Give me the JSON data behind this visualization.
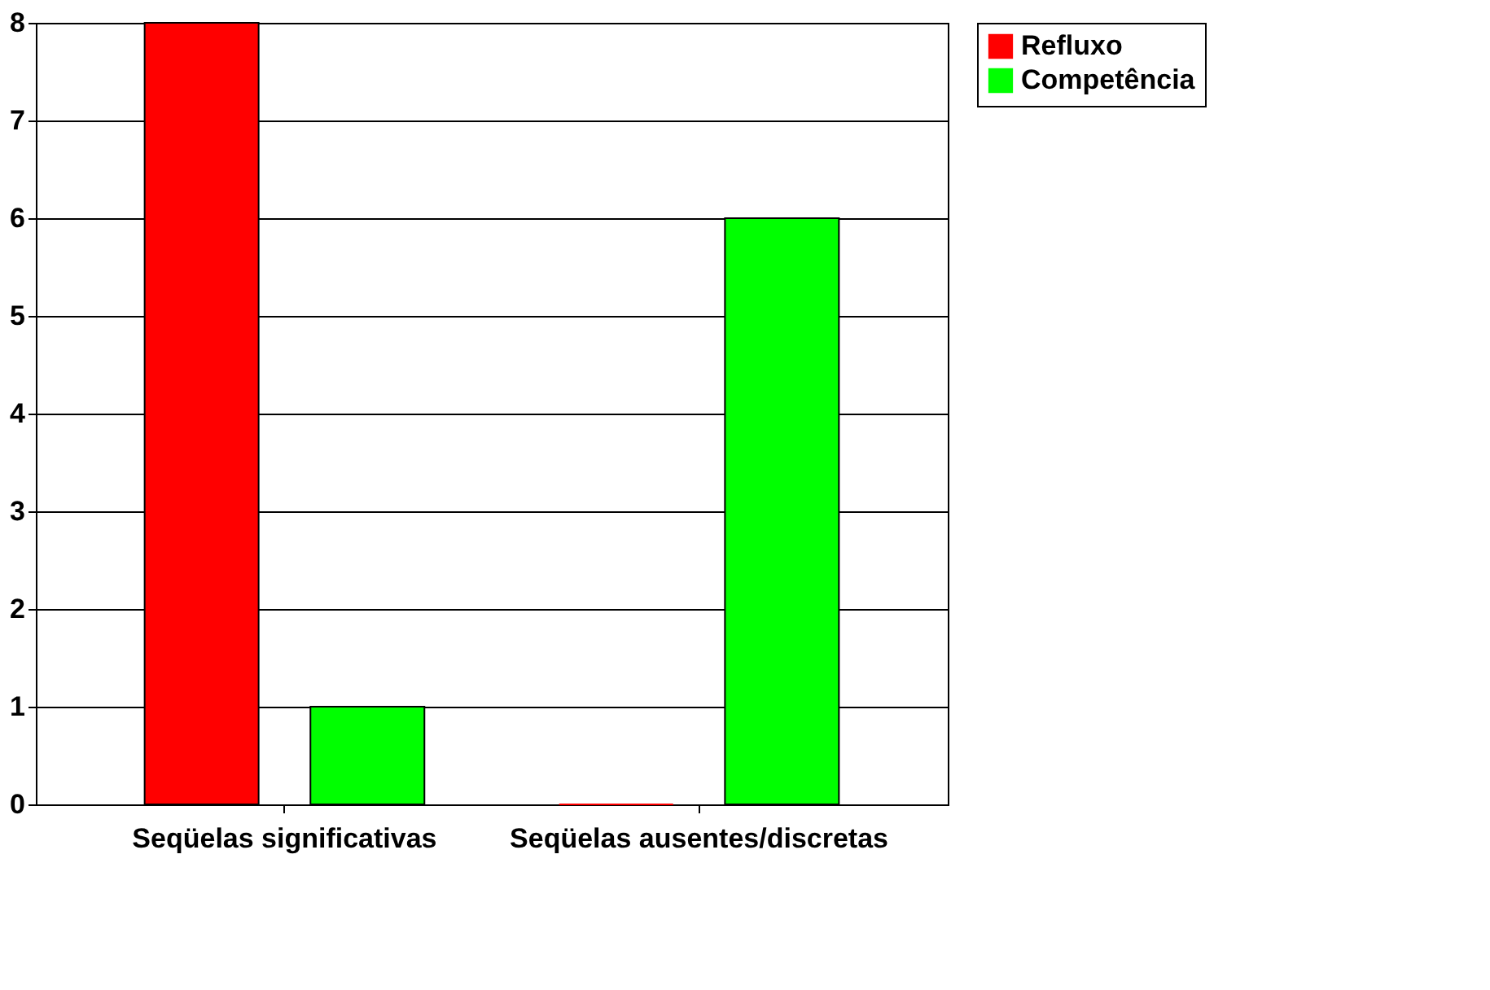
{
  "chart_data": {
    "type": "bar",
    "categories": [
      "Seqüelas significativas",
      "Seqüelas ausentes/discretas"
    ],
    "series": [
      {
        "name": "Refluxo",
        "color": "#ff0000",
        "values": [
          8,
          0
        ]
      },
      {
        "name": "Competência",
        "color": "#00ff00",
        "values": [
          1,
          6
        ]
      }
    ],
    "ylim": [
      0,
      8
    ],
    "yticks": [
      0,
      1,
      2,
      3,
      4,
      5,
      6,
      7,
      8
    ],
    "grid": "y",
    "legend": "right"
  }
}
